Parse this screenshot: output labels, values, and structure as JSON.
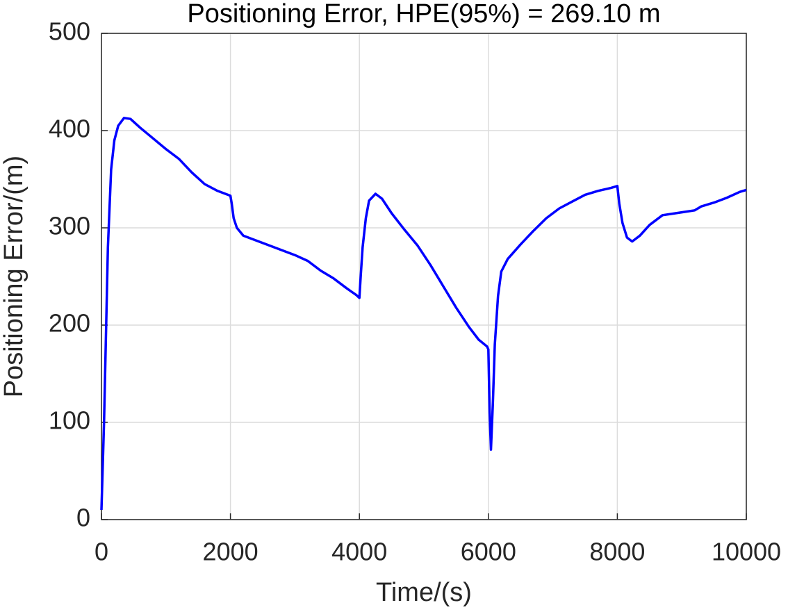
{
  "chart_data": {
    "type": "line",
    "title": "Positioning Error, HPE(95%) = 269.10 m",
    "x_label": "Time/(s)",
    "y_label": "Positioning Error/(m)",
    "xlim": [
      0,
      10000
    ],
    "ylim": [
      0,
      500
    ],
    "xticks": [
      0,
      2000,
      4000,
      6000,
      8000,
      10000
    ],
    "yticks": [
      0,
      100,
      200,
      300,
      400,
      500
    ],
    "grid": true,
    "series": [
      {
        "color": "#0000ff",
        "x": [
          0,
          40,
          100,
          150,
          200,
          260,
          350,
          450,
          600,
          800,
          1000,
          1200,
          1400,
          1600,
          1800,
          2000,
          2020,
          2050,
          2100,
          2200,
          2400,
          2600,
          2800,
          3000,
          3200,
          3400,
          3600,
          3800,
          3950,
          4000,
          4020,
          4050,
          4100,
          4150,
          4250,
          4350,
          4500,
          4700,
          4900,
          5100,
          5300,
          5500,
          5700,
          5850,
          5980,
          6000,
          6020,
          6040,
          6070,
          6100,
          6150,
          6200,
          6300,
          6500,
          6700,
          6900,
          7100,
          7300,
          7500,
          7700,
          7900,
          8000,
          8030,
          8080,
          8150,
          8230,
          8350,
          8500,
          8700,
          9000,
          9200,
          9300,
          9500,
          9700,
          9900,
          10000
        ],
        "values": [
          10,
          100,
          280,
          360,
          390,
          405,
          413,
          412,
          403,
          392,
          381,
          371,
          357,
          345,
          338,
          333,
          325,
          310,
          300,
          292,
          287,
          282,
          277,
          272,
          266,
          256,
          248,
          238,
          231,
          228,
          250,
          280,
          310,
          328,
          335,
          330,
          315,
          298,
          282,
          262,
          240,
          218,
          198,
          185,
          178,
          175,
          110,
          72,
          120,
          180,
          230,
          255,
          268,
          283,
          297,
          310,
          320,
          327,
          334,
          338,
          341,
          343,
          325,
          305,
          290,
          286,
          292,
          303,
          313,
          316,
          318,
          322,
          326,
          331,
          337,
          339
        ]
      }
    ]
  }
}
